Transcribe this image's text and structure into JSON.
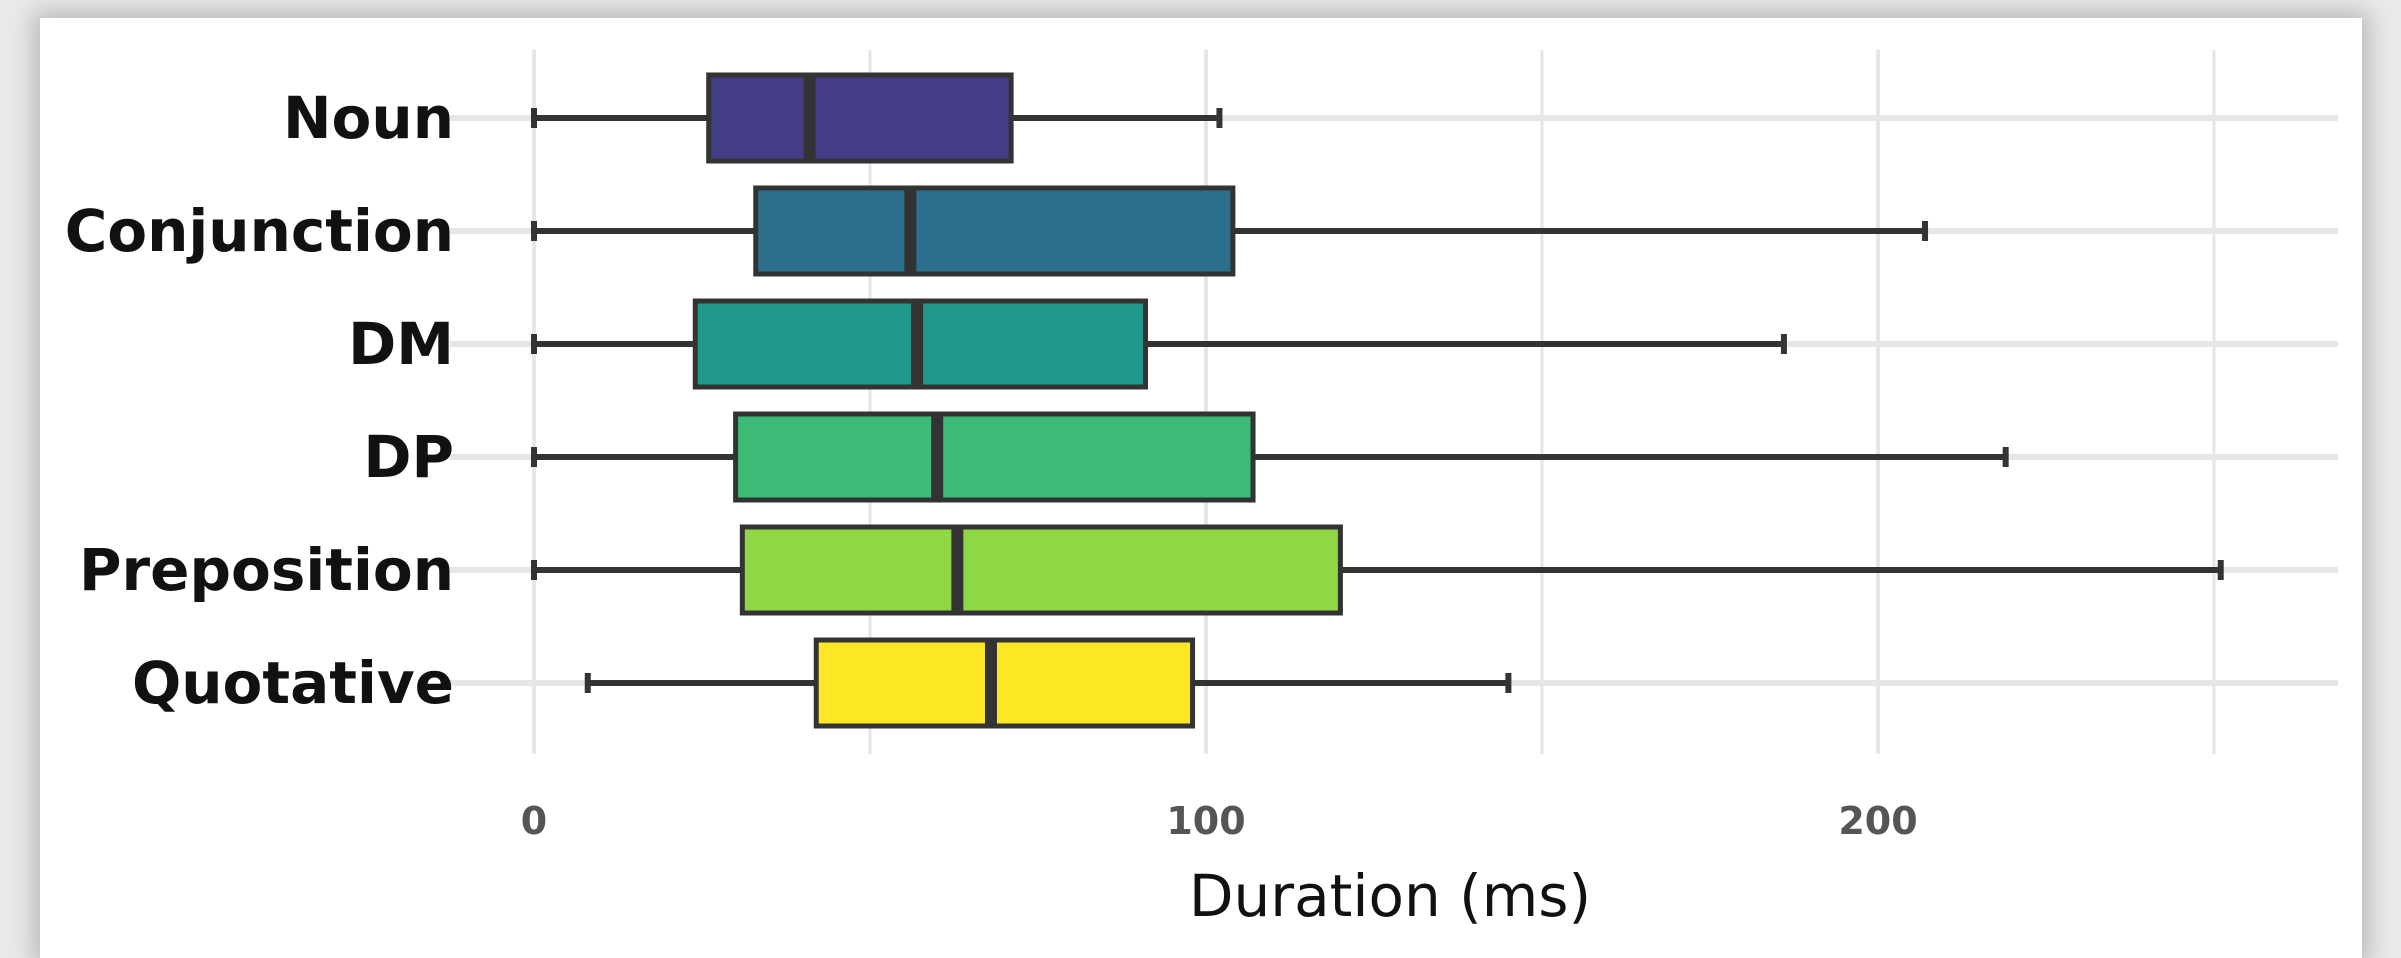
{
  "chart_data": {
    "type": "boxplot",
    "orientation": "horizontal",
    "title": "",
    "xlabel": "Duration (ms)",
    "ylabel": "",
    "xlim": [
      -13,
      270
    ],
    "x_ticks": [
      0,
      100,
      200
    ],
    "grid": true,
    "legend": "none",
    "categories": [
      "Noun",
      "Conjunction",
      "DM",
      "DP",
      "Preposition",
      "Quotative"
    ],
    "series": [
      {
        "category": "Noun",
        "whisker_low": 0,
        "q1": 26,
        "median": 41,
        "q3": 71,
        "whisker_high": 102,
        "color": "#433e85"
      },
      {
        "category": "Conjunction",
        "whisker_low": 0,
        "q1": 33,
        "median": 56,
        "q3": 104,
        "whisker_high": 207,
        "color": "#2d708e"
      },
      {
        "category": "DM",
        "whisker_low": 0,
        "q1": 24,
        "median": 57,
        "q3": 91,
        "whisker_high": 186,
        "color": "#20988b"
      },
      {
        "category": "DP",
        "whisker_low": 0,
        "q1": 30,
        "median": 60,
        "q3": 107,
        "whisker_high": 219,
        "color": "#3bbb75"
      },
      {
        "category": "Preposition",
        "whisker_low": 0,
        "q1": 31,
        "median": 63,
        "q3": 120,
        "whisker_high": 251,
        "color": "#8fd744"
      },
      {
        "category": "Quotative",
        "whisker_low": 8,
        "q1": 42,
        "median": 68,
        "q3": 98,
        "whisker_high": 145,
        "color": "#fde725"
      }
    ]
  }
}
